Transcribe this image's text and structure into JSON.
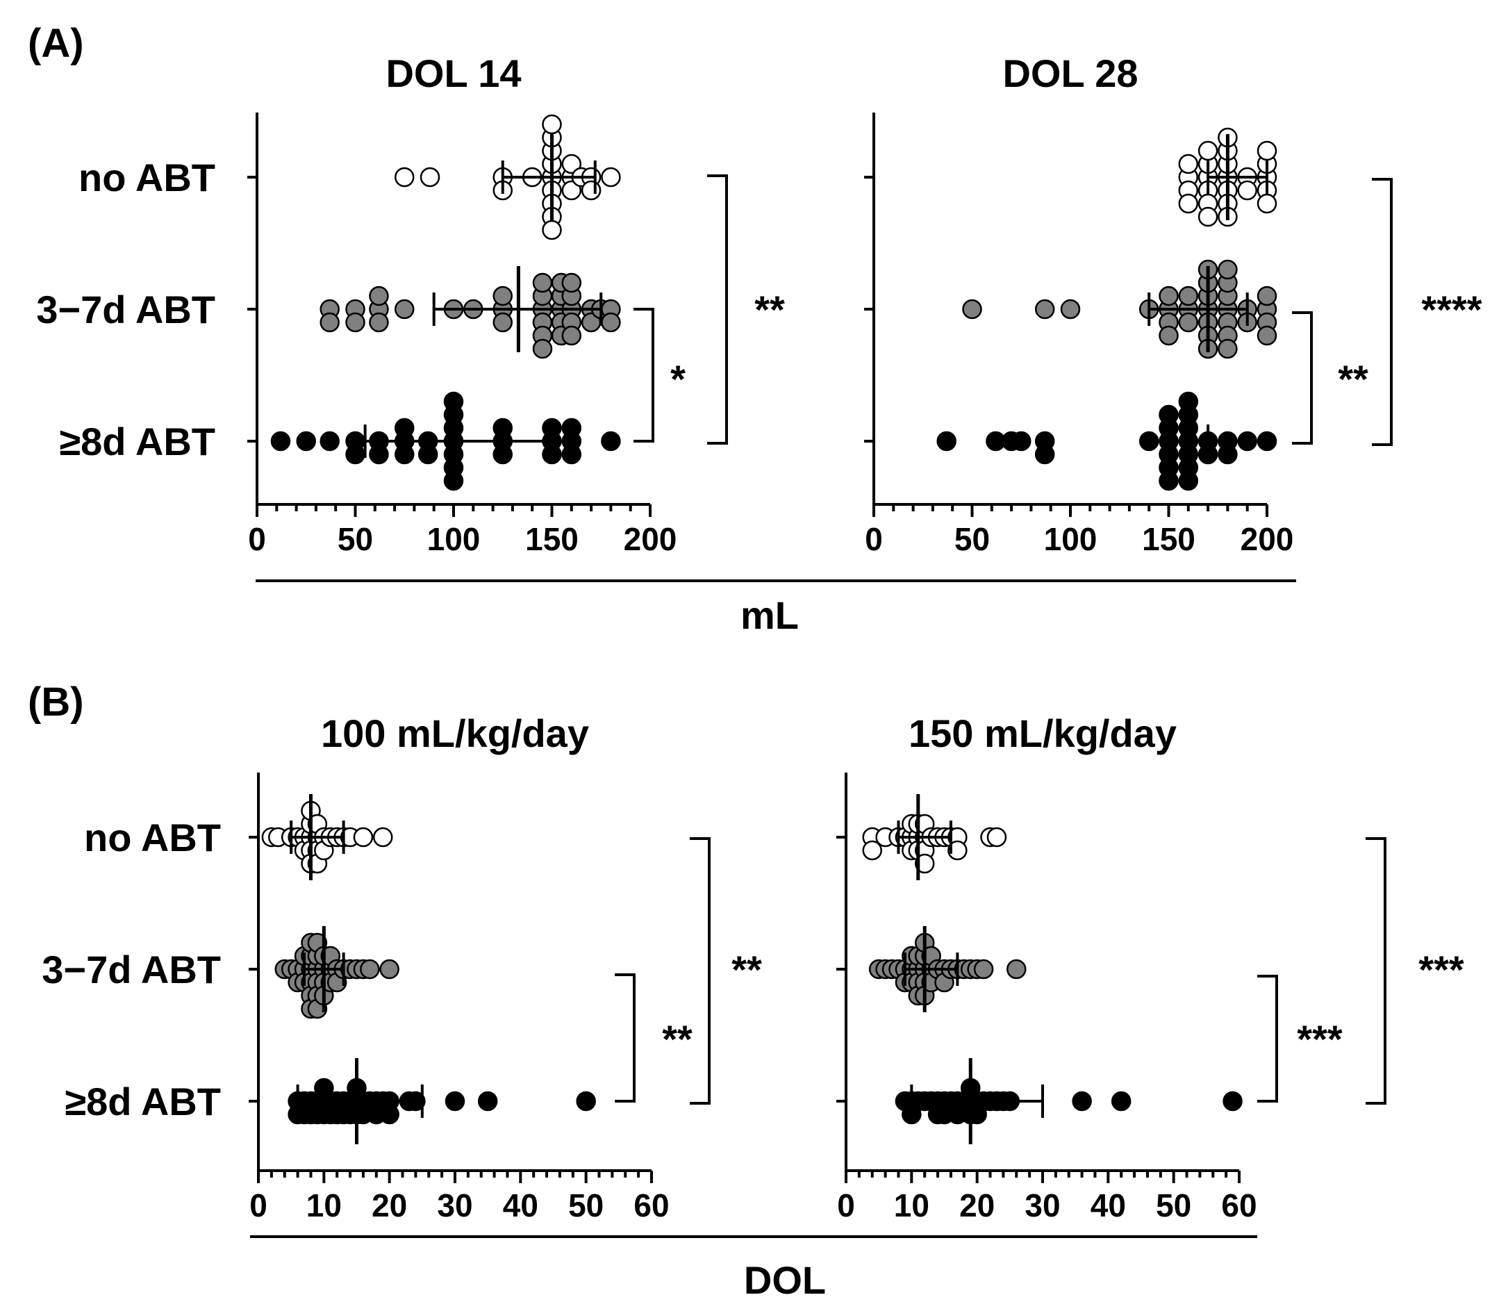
{
  "figure": {
    "panel_a": {
      "label": "(A)",
      "shared_xlabel": "mL"
    },
    "panel_b": {
      "label": "(B)",
      "shared_xlabel": "DOL"
    }
  },
  "colors": {
    "no_abt": "#ffffff",
    "abt_3_7d": "#808080",
    "abt_8d": "#000000",
    "stroke": "#000000"
  },
  "chart_data": [
    {
      "id": "a1",
      "type": "scatter",
      "panel": "(A)",
      "title": "DOL 14",
      "xlabel": "mL",
      "xlim": [
        0,
        200
      ],
      "xticks": [
        0,
        50,
        100,
        150,
        200
      ],
      "minor_step": 10,
      "categories": [
        "no ABT",
        "3−7d ABT",
        "≥8d ABT"
      ],
      "series": [
        {
          "name": "no ABT",
          "color": "no_abt",
          "values": [
            75,
            88,
            125,
            125,
            140,
            150,
            150,
            150,
            150,
            150,
            150,
            150,
            150,
            150,
            160,
            160,
            160,
            165,
            170,
            170,
            180
          ],
          "median": 150,
          "iqr": [
            125,
            172
          ]
        },
        {
          "name": "3−7d ABT",
          "color": "abt_3_7d",
          "values": [
            37,
            37,
            50,
            50,
            62,
            62,
            62,
            75,
            100,
            110,
            125,
            125,
            125,
            150,
            150,
            150,
            150,
            150,
            150,
            150,
            150,
            150,
            150,
            150,
            160,
            160,
            160,
            160,
            160,
            170,
            170,
            175,
            180,
            180
          ],
          "median": 133,
          "iqr": [
            90,
            175
          ]
        },
        {
          "name": "≥8d ABT",
          "color": "abt_8d",
          "values": [
            12,
            25,
            37,
            50,
            50,
            62,
            62,
            75,
            75,
            75,
            87,
            87,
            100,
            100,
            100,
            100,
            100,
            100,
            100,
            125,
            125,
            125,
            150,
            150,
            150,
            160,
            160,
            160,
            180
          ],
          "median": 100,
          "iqr": [
            55,
            150
          ]
        }
      ],
      "comparisons": [
        {
          "from": "3−7d ABT",
          "to": "≥8d ABT",
          "label": "*"
        },
        {
          "from": "no ABT",
          "to": "≥8d ABT",
          "label": "**"
        }
      ]
    },
    {
      "id": "a2",
      "type": "scatter",
      "panel": "(A)",
      "title": "DOL 28",
      "xlabel": "mL",
      "xlim": [
        0,
        200
      ],
      "xticks": [
        0,
        50,
        100,
        150,
        200
      ],
      "minor_step": 10,
      "categories": [
        "no ABT",
        "3−7d ABT",
        "≥8d ABT"
      ],
      "series": [
        {
          "name": "no ABT",
          "color": "no_abt",
          "values": [
            160,
            160,
            160,
            160,
            170,
            170,
            170,
            170,
            170,
            170,
            180,
            180,
            180,
            180,
            180,
            180,
            180,
            190,
            190,
            200,
            200,
            200,
            200,
            200
          ],
          "median": 180,
          "iqr": [
            170,
            200
          ]
        },
        {
          "name": "3−7d ABT",
          "color": "abt_3_7d",
          "values": [
            50,
            87,
            100,
            140,
            150,
            150,
            150,
            150,
            160,
            160,
            160,
            170,
            170,
            170,
            170,
            170,
            170,
            170,
            180,
            180,
            180,
            180,
            180,
            180,
            180,
            190,
            190,
            200,
            200,
            200,
            200
          ],
          "median": 170,
          "iqr": [
            140,
            190
          ]
        },
        {
          "name": "≥8d ABT",
          "color": "abt_8d",
          "values": [
            37,
            62,
            70,
            75,
            87,
            87,
            140,
            150,
            150,
            150,
            150,
            150,
            150,
            160,
            160,
            160,
            160,
            160,
            160,
            160,
            170,
            170,
            180,
            180,
            190,
            200
          ],
          "median": 160,
          "iqr": [
            150,
            170
          ]
        }
      ],
      "comparisons": [
        {
          "from": "3−7d ABT",
          "to": "≥8d ABT",
          "label": "**"
        },
        {
          "from": "no ABT",
          "to": "≥8d ABT",
          "label": "****"
        }
      ]
    },
    {
      "id": "b1",
      "type": "scatter",
      "panel": "(B)",
      "title": "100 mL/kg/day",
      "xlabel": "DOL",
      "xlim": [
        0,
        60
      ],
      "xticks": [
        0,
        10,
        20,
        30,
        40,
        50,
        60
      ],
      "minor_step": 2,
      "categories": [
        "no ABT",
        "3−7d ABT",
        "≥8d ABT"
      ],
      "series": [
        {
          "name": "no ABT",
          "color": "no_abt",
          "values": [
            2,
            3,
            5,
            6,
            7,
            7,
            8,
            8,
            8,
            8,
            8,
            9,
            9,
            9,
            9,
            10,
            10,
            11,
            12,
            13,
            14,
            16,
            19
          ],
          "median": 8,
          "iqr": [
            5,
            13
          ]
        },
        {
          "name": "3−7d ABT",
          "color": "abt_3_7d",
          "values": [
            4,
            5,
            6,
            6,
            7,
            7,
            7,
            8,
            8,
            8,
            8,
            8,
            8,
            9,
            9,
            9,
            9,
            9,
            9,
            10,
            10,
            10,
            10,
            11,
            11,
            11,
            12,
            12,
            13,
            14,
            15,
            16,
            17,
            20
          ],
          "median": 10,
          "iqr": [
            7,
            13
          ]
        },
        {
          "name": "≥8d ABT",
          "color": "abt_8d",
          "values": [
            6,
            6,
            7,
            7,
            8,
            8,
            9,
            9,
            10,
            10,
            10,
            11,
            11,
            12,
            12,
            13,
            13,
            14,
            14,
            15,
            15,
            15,
            16,
            16,
            17,
            18,
            18,
            19,
            20,
            20,
            23,
            24,
            30,
            35,
            50
          ],
          "median": 15,
          "iqr": [
            6,
            25
          ]
        }
      ],
      "comparisons": [
        {
          "from": "3−7d ABT",
          "to": "≥8d ABT",
          "label": "**"
        },
        {
          "from": "no ABT",
          "to": "≥8d ABT",
          "label": "**"
        }
      ]
    },
    {
      "id": "b2",
      "type": "scatter",
      "panel": "(B)",
      "title": "150 mL/kg/day",
      "xlabel": "DOL",
      "xlim": [
        0,
        60
      ],
      "xticks": [
        0,
        10,
        20,
        30,
        40,
        50,
        60
      ],
      "minor_step": 2,
      "categories": [
        "no ABT",
        "3−7d ABT",
        "≥8d ABT"
      ],
      "series": [
        {
          "name": "no ABT",
          "color": "no_abt",
          "values": [
            4,
            4,
            6,
            8,
            9,
            10,
            10,
            10,
            11,
            11,
            11,
            12,
            12,
            12,
            12,
            13,
            14,
            15,
            16,
            17,
            17,
            22,
            23
          ],
          "median": 11,
          "iqr": [
            8,
            16
          ]
        },
        {
          "name": "3−7d ABT",
          "color": "abt_3_7d",
          "values": [
            5,
            6,
            7,
            8,
            9,
            9,
            10,
            10,
            10,
            11,
            11,
            11,
            11,
            12,
            12,
            12,
            12,
            12,
            13,
            13,
            13,
            14,
            15,
            15,
            16,
            17,
            18,
            19,
            20,
            21,
            26
          ],
          "median": 12,
          "iqr": [
            9,
            17
          ]
        },
        {
          "name": "≥8d ABT",
          "color": "abt_8d",
          "values": [
            9,
            10,
            10,
            11,
            12,
            13,
            14,
            14,
            15,
            15,
            16,
            17,
            17,
            18,
            19,
            19,
            19,
            20,
            20,
            21,
            22,
            23,
            24,
            25,
            36,
            42,
            59
          ],
          "median": 19,
          "iqr": [
            10,
            30
          ]
        }
      ],
      "comparisons": [
        {
          "from": "3−7d ABT",
          "to": "≥8d ABT",
          "label": "***"
        },
        {
          "from": "no ABT",
          "to": "≥8d ABT",
          "label": "***"
        }
      ]
    }
  ]
}
